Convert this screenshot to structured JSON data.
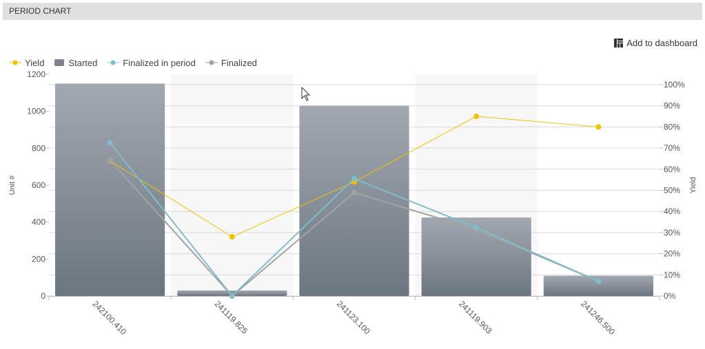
{
  "panel": {
    "title": "PERIOD CHART"
  },
  "toolbar": {
    "add_to_dashboard_label": "Add to dashboard",
    "add_to_dashboard_icon": "dashboard-grid-icon"
  },
  "colors": {
    "yield": "#f2c200",
    "finalized_in_period": "#7fbdcc",
    "finalized": "#a3a3a3",
    "bar_top": "#a2a8b0",
    "bar_bottom": "#6c7681",
    "band": "#f7f7f7",
    "grid": "#d9d9d9"
  },
  "chart_data": {
    "type": "bar",
    "categories": [
      "242100.410",
      "241119.825",
      "241123.100",
      "241119.903",
      "241246.500"
    ],
    "series": [
      {
        "name": "Started",
        "type": "bar",
        "axis": "left",
        "values": [
          1150,
          30,
          1030,
          425,
          110
        ]
      },
      {
        "name": "Yield",
        "type": "line",
        "axis": "right",
        "values": [
          64,
          28,
          54,
          85,
          80
        ]
      },
      {
        "name": "Finalized in period",
        "type": "line",
        "axis": "left",
        "values": [
          830,
          0,
          635,
          370,
          80
        ]
      },
      {
        "name": "Finalized",
        "type": "line",
        "axis": "left",
        "values": [
          735,
          0,
          560,
          360,
          80
        ]
      }
    ],
    "legend": [
      "Yield",
      "Started",
      "Finalized in period",
      "Finalized"
    ],
    "legend_position": "top-left",
    "ylabel": "Unit #",
    "ylim": [
      0,
      1200
    ],
    "yticks": [
      "0",
      "200",
      "400",
      "600",
      "800",
      "1000",
      "1200"
    ],
    "y2label": "Yield",
    "y2lim": [
      0,
      100
    ],
    "y2ticks": [
      "0%",
      "10%",
      "20%",
      "30%",
      "40%",
      "50%",
      "60%",
      "70%",
      "80%",
      "90%",
      "100%"
    ],
    "grid": true
  }
}
